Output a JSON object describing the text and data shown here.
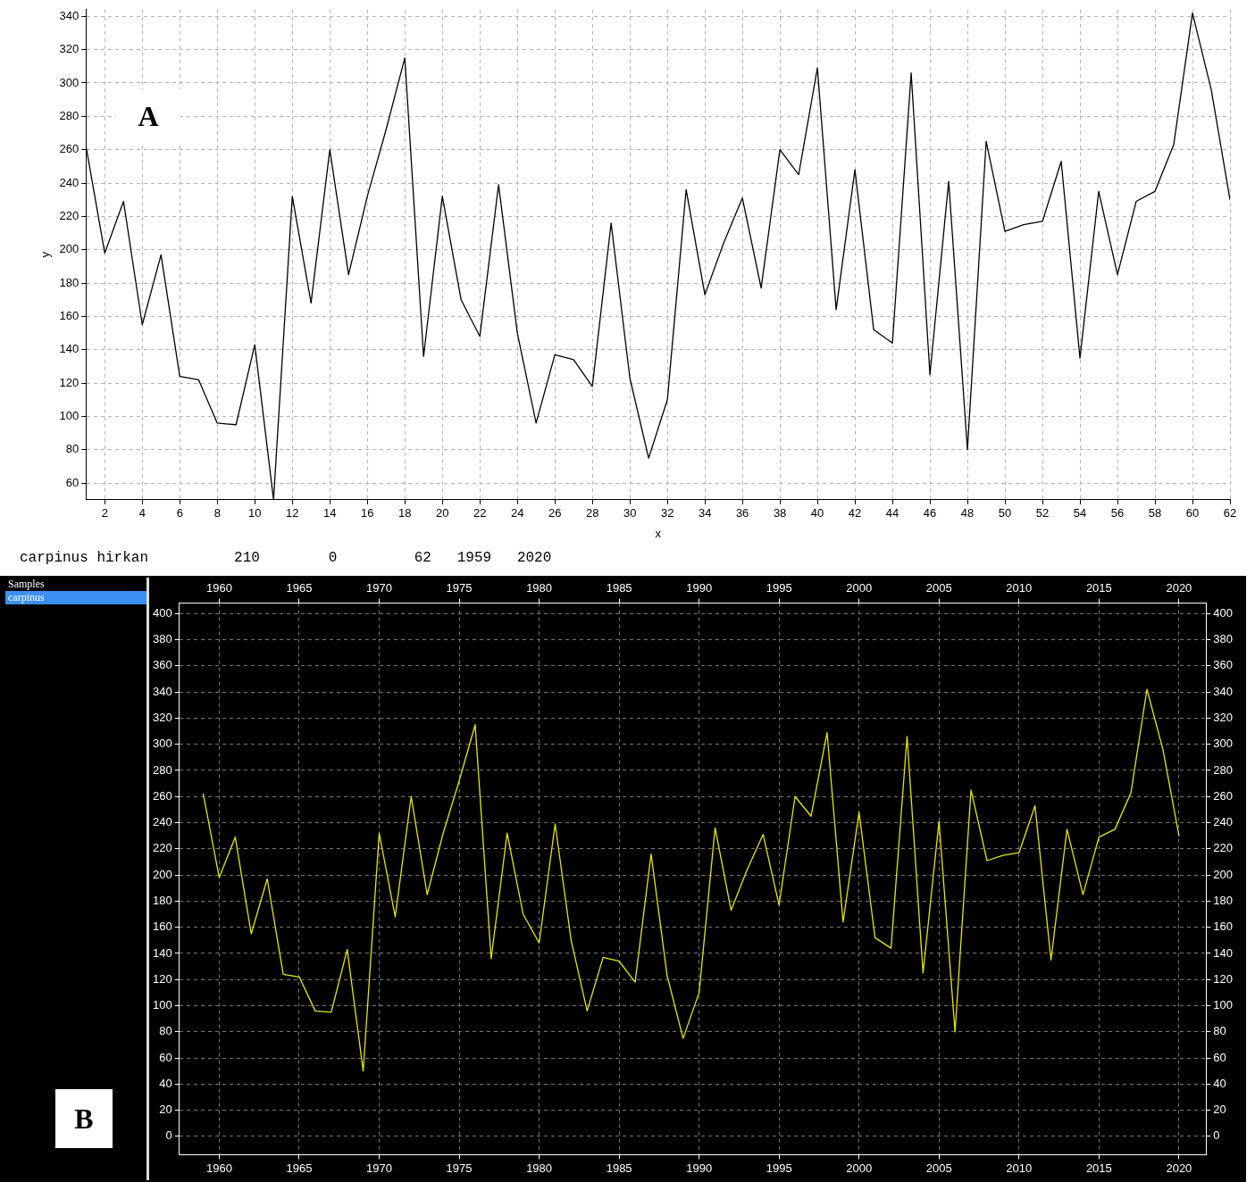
{
  "chart_data": [
    {
      "type": "line",
      "xlabel": "x",
      "ylabel": "y",
      "annotations": [
        "A"
      ],
      "x": [
        1,
        2,
        3,
        4,
        5,
        6,
        7,
        8,
        9,
        10,
        11,
        12,
        13,
        14,
        15,
        16,
        17,
        18,
        19,
        20,
        21,
        22,
        23,
        24,
        25,
        26,
        27,
        28,
        29,
        30,
        31,
        32,
        33,
        34,
        35,
        36,
        37,
        38,
        39,
        40,
        41,
        42,
        43,
        44,
        45,
        46,
        47,
        48,
        49,
        50,
        51,
        52,
        53,
        54,
        55,
        56,
        57,
        58,
        59,
        60,
        61,
        62
      ],
      "series": [
        {
          "color": "#000000",
          "values": [
            262,
            198,
            229,
            155,
            197,
            124,
            122,
            96,
            95,
            143,
            50,
            232,
            168,
            260,
            185,
            232,
            272,
            315,
            136,
            232,
            170,
            148,
            239,
            150,
            96,
            137,
            134,
            118,
            216,
            123,
            75,
            110,
            236,
            173,
            204,
            231,
            177,
            260,
            245,
            309,
            164,
            248,
            152,
            144,
            306,
            125,
            241,
            80,
            265,
            211,
            215,
            217,
            253,
            135,
            235,
            185,
            229,
            235,
            263,
            342,
            296,
            230
          ]
        }
      ],
      "xlim": [
        1,
        62
      ],
      "xticks": [
        2,
        4,
        6,
        8,
        10,
        12,
        14,
        16,
        18,
        20,
        22,
        24,
        26,
        28,
        30,
        32,
        34,
        36,
        38,
        40,
        42,
        44,
        46,
        48,
        50,
        52,
        54,
        56,
        58,
        60,
        62
      ],
      "ylim": [
        50,
        344
      ],
      "yticks": [
        60,
        80,
        100,
        120,
        140,
        160,
        180,
        200,
        220,
        240,
        260,
        280,
        300,
        320,
        340
      ],
      "grid": true,
      "legend": false,
      "marker": "none",
      "line_style": "solid"
    },
    {
      "type": "line",
      "annotations": [
        "carpinus hirkan          210        0         62   1959   2020",
        "Samples",
        "carpinus",
        "B"
      ],
      "x": [
        1959,
        1960,
        1961,
        1962,
        1963,
        1964,
        1965,
        1966,
        1967,
        1968,
        1969,
        1970,
        1971,
        1972,
        1973,
        1974,
        1975,
        1976,
        1977,
        1978,
        1979,
        1980,
        1981,
        1982,
        1983,
        1984,
        1985,
        1986,
        1987,
        1988,
        1989,
        1990,
        1991,
        1992,
        1993,
        1994,
        1995,
        1996,
        1997,
        1998,
        1999,
        2000,
        2001,
        2002,
        2003,
        2004,
        2005,
        2006,
        2007,
        2008,
        2009,
        2010,
        2011,
        2012,
        2013,
        2014,
        2015,
        2016,
        2017,
        2018,
        2019,
        2020
      ],
      "series": [
        {
          "color": "#e8e800",
          "values": [
            262,
            198,
            229,
            155,
            197,
            124,
            122,
            96,
            95,
            143,
            50,
            232,
            168,
            260,
            185,
            232,
            272,
            315,
            136,
            232,
            170,
            148,
            239,
            150,
            96,
            137,
            134,
            118,
            216,
            123,
            75,
            110,
            236,
            173,
            204,
            231,
            177,
            260,
            245,
            309,
            164,
            248,
            152,
            144,
            306,
            125,
            241,
            80,
            265,
            211,
            215,
            217,
            253,
            135,
            235,
            185,
            229,
            235,
            263,
            342,
            296,
            230
          ]
        }
      ],
      "xlim": [
        1957.5,
        2021.7
      ],
      "xticks": [
        1960,
        1965,
        1970,
        1975,
        1980,
        1985,
        1990,
        1995,
        2000,
        2005,
        2010,
        2015,
        2020
      ],
      "x2lim": [
        1957.5,
        2021.7
      ],
      "x2ticks": [
        1960,
        1965,
        1970,
        1975,
        1980,
        1985,
        1990,
        1995,
        2000,
        2005,
        2010,
        2015,
        2020
      ],
      "ylim": [
        -14,
        408
      ],
      "yticks": [
        0,
        20,
        40,
        60,
        80,
        100,
        120,
        140,
        160,
        180,
        200,
        220,
        240,
        260,
        280,
        300,
        320,
        340,
        360,
        380,
        400
      ],
      "y2lim": [
        -14,
        408
      ],
      "y2ticks": [
        0,
        20,
        40,
        60,
        80,
        100,
        120,
        140,
        160,
        180,
        200,
        220,
        240,
        260,
        280,
        300,
        320,
        340,
        360,
        380,
        400
      ],
      "grid": true,
      "legend": false,
      "marker": "none",
      "line_style": "solid"
    }
  ]
}
